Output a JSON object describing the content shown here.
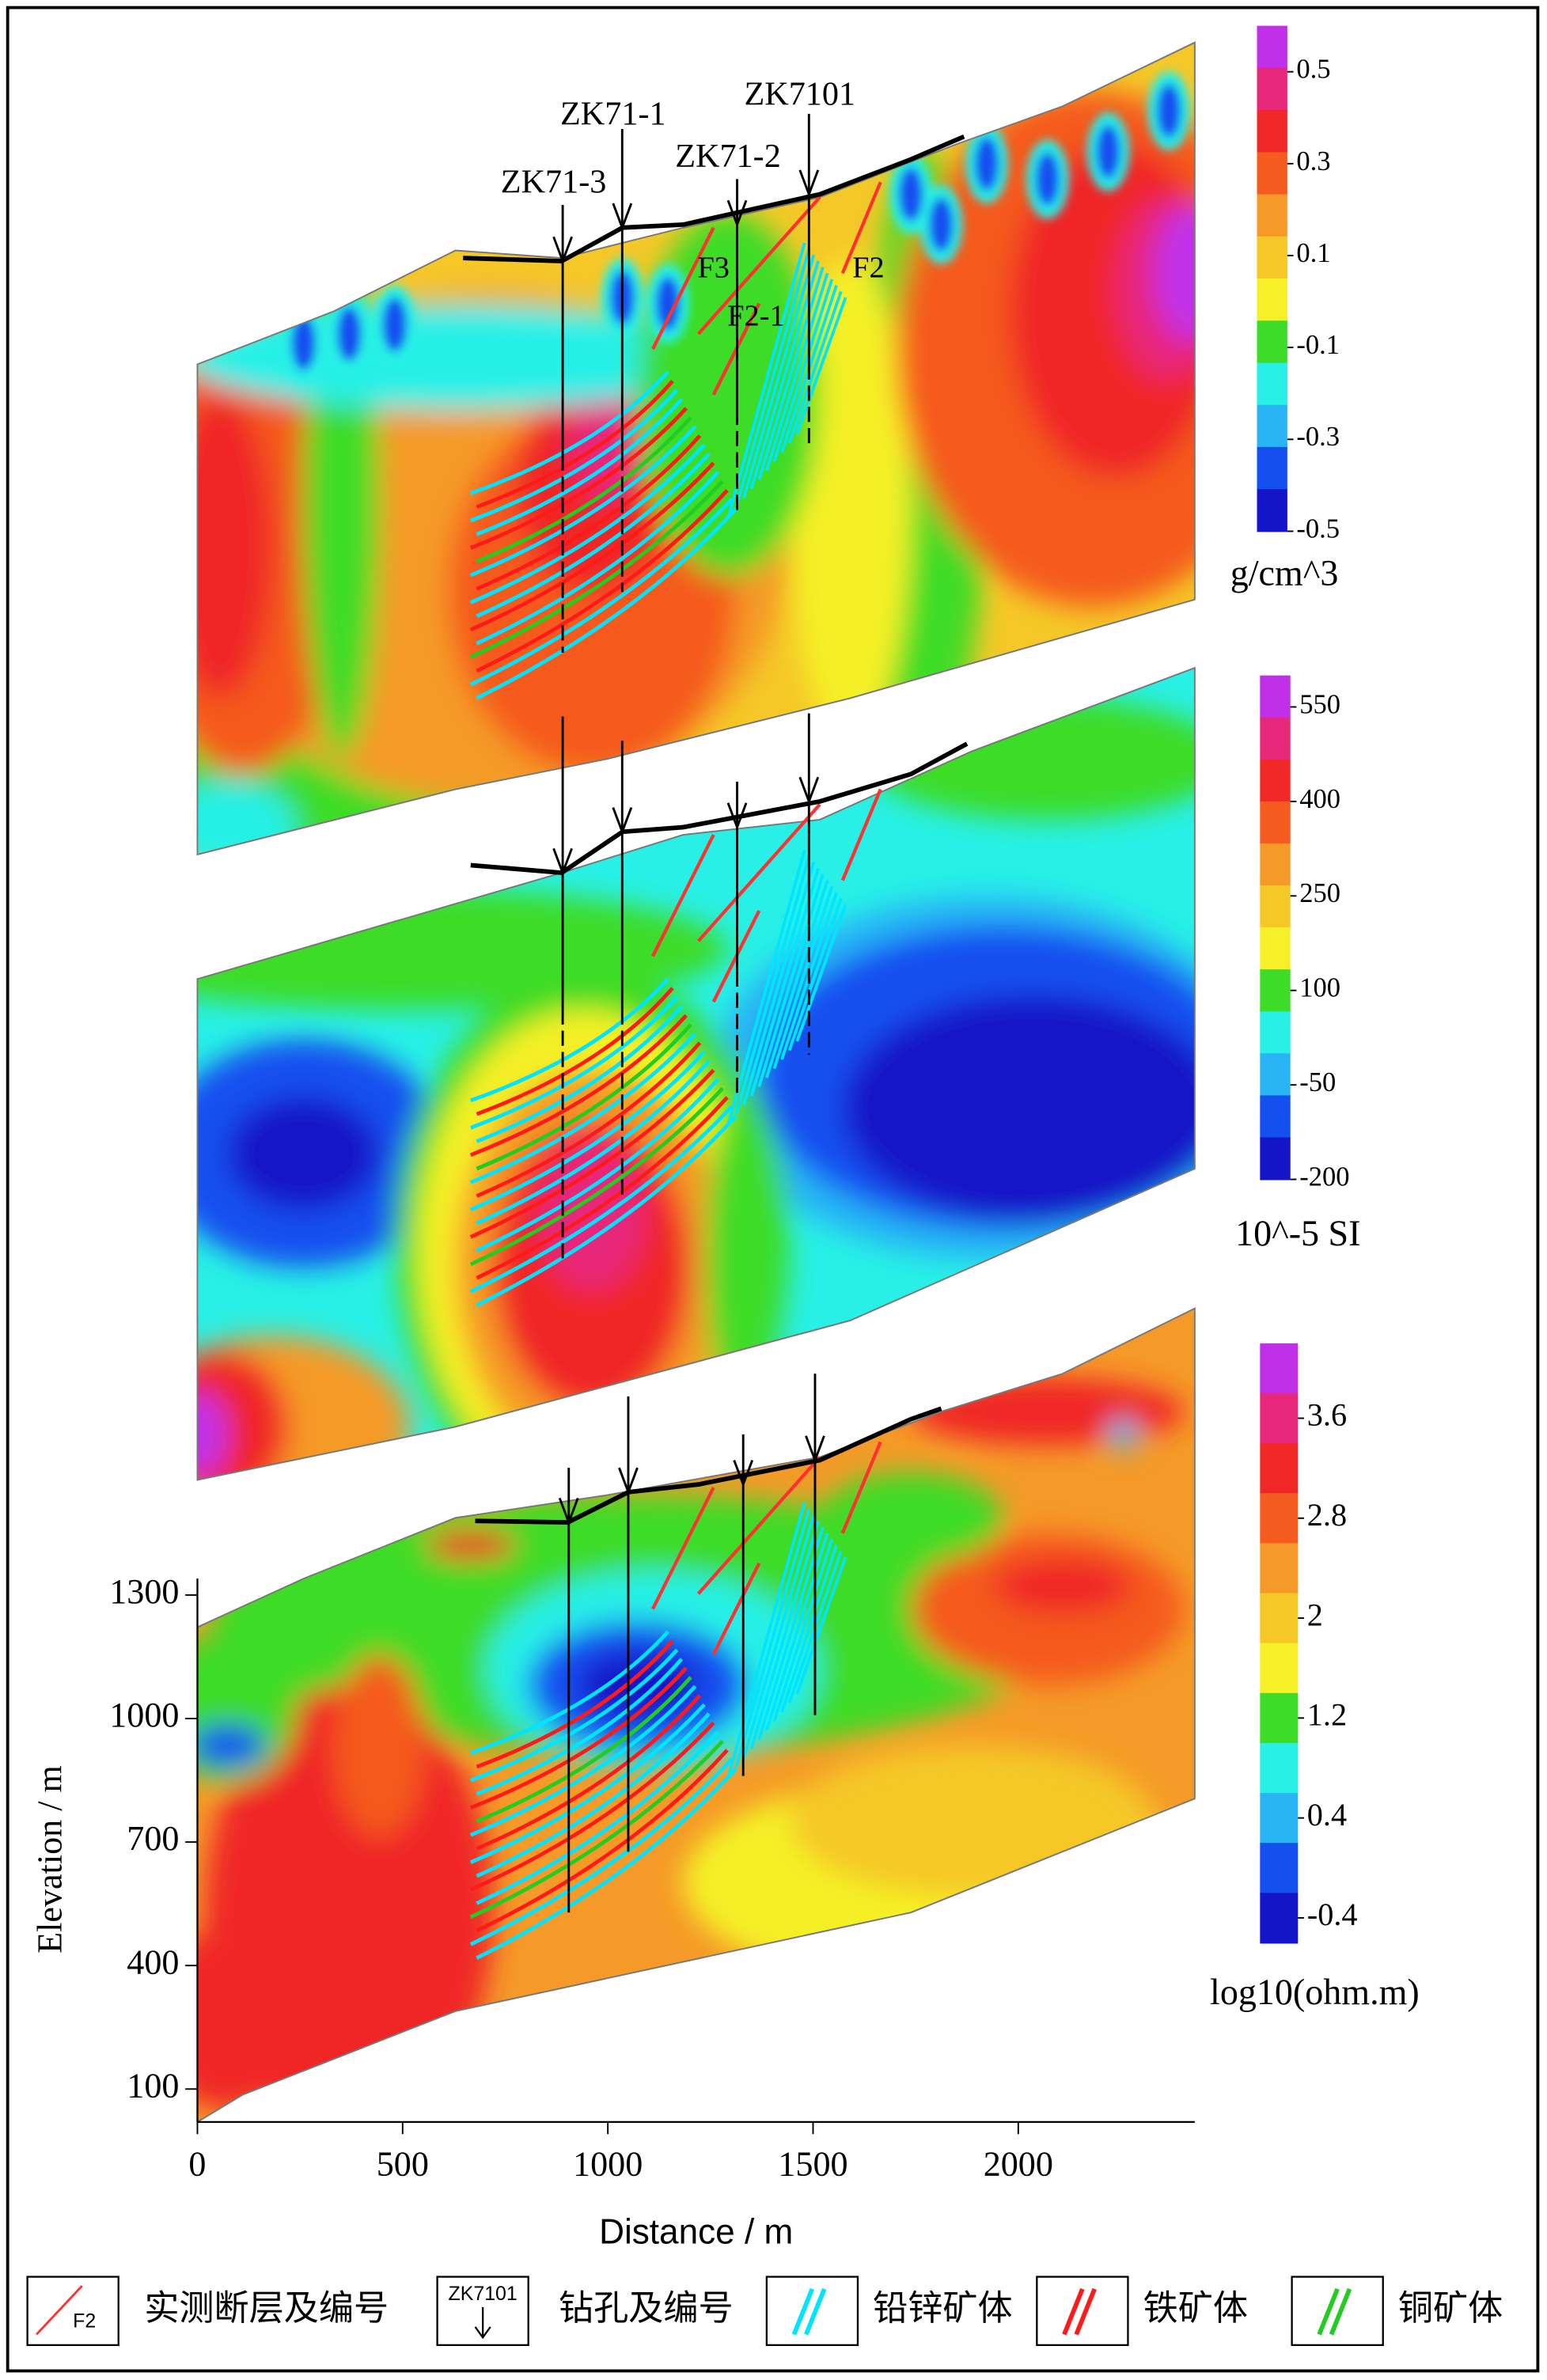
{
  "chart_data": [
    {
      "type": "section",
      "colorbar": {
        "vlim": [
          -0.5,
          0.6
        ],
        "ticks": [
          0.5,
          0.3,
          0.1,
          -0.1,
          -0.3,
          -0.5
        ],
        "label": "g/cm^3"
      }
    },
    {
      "type": "section",
      "colorbar": {
        "vlim": [
          -200,
          600
        ],
        "ticks": [
          550,
          400,
          250,
          100,
          -50,
          -200
        ],
        "label": "10^-5 SI"
      }
    },
    {
      "type": "section",
      "colorbar": {
        "vlim": [
          -0.6,
          4.2
        ],
        "ticks": [
          3.6,
          2.8,
          2,
          1.2,
          0.4,
          -0.4
        ],
        "label": "log10(ohm.m)"
      },
      "xlabel": "Distance / m",
      "ylabel": "Elevation / m",
      "xlim": [
        0,
        2430
      ],
      "xticks": [
        0,
        500,
        1000,
        1500,
        2000
      ],
      "ylim": [
        20,
        1340
      ],
      "yticks": [
        1300,
        1000,
        700,
        400,
        100
      ]
    }
  ],
  "colormap": [
    "#c030e8",
    "#e8287a",
    "#f02828",
    "#f55a1e",
    "#f59a28",
    "#f5c828",
    "#f5f028",
    "#3cdc28",
    "#28f0e6",
    "#28b4f5",
    "#1450f0",
    "#1414c8"
  ],
  "boreholes": [
    {
      "label": "ZK71-3",
      "x": 890
    },
    {
      "label": "ZK71-1",
      "x": 1035
    },
    {
      "label": "ZK71-2",
      "x": 1315
    },
    {
      "label": "ZK7101",
      "x": 1490
    }
  ],
  "faults": [
    {
      "label": "F3"
    },
    {
      "label": "F2-1"
    },
    {
      "label": "F2"
    }
  ],
  "legend": [
    {
      "symbol": "F2",
      "label": "实测断层及编号",
      "color": "#ff3030"
    },
    {
      "symbol": "ZK7101",
      "label": "钻孔及编号"
    },
    {
      "label": "铅锌矿体",
      "color": "#00e5ff"
    },
    {
      "label": "铁矿体",
      "color": "#ff1a1a"
    },
    {
      "label": "铜矿体",
      "color": "#22cc22"
    }
  ]
}
